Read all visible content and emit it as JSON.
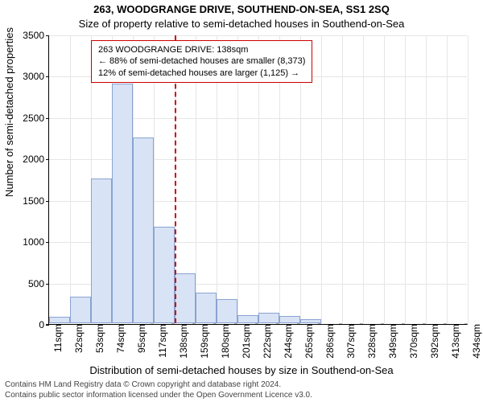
{
  "chart": {
    "type": "histogram",
    "title_line1": "263, WOODGRANGE DRIVE, SOUTHEND-ON-SEA, SS1 2SQ",
    "title_line2": "Size of property relative to semi-detached houses in Southend-on-Sea",
    "ylabel": "Number of semi-detached properties",
    "xlabel": "Distribution of semi-detached houses by size in Southend-on-Sea",
    "title_fontsize": 13,
    "subtitle_fontsize": 13,
    "axis_label_fontsize": 13,
    "tick_fontsize": 12,
    "footer_fontsize": 10,
    "background_color": "#ffffff",
    "grid_color": "#e6e6e6",
    "axis_color": "#000000",
    "bar_fill": "#d8e3f5",
    "bar_border": "#8aa3d1",
    "marker_color": "#cc0000",
    "ylim": [
      0,
      3500
    ],
    "ytick_step": 500,
    "x_tick_labels": [
      "11sqm",
      "32sqm",
      "53sqm",
      "74sqm",
      "95sqm",
      "117sqm",
      "138sqm",
      "159sqm",
      "180sqm",
      "201sqm",
      "222sqm",
      "244sqm",
      "265sqm",
      "286sqm",
      "307sqm",
      "328sqm",
      "349sqm",
      "370sqm",
      "392sqm",
      "413sqm",
      "434sqm"
    ],
    "bar_values": [
      75,
      320,
      1750,
      2900,
      2250,
      1170,
      600,
      370,
      290,
      100,
      125,
      90,
      50,
      0,
      0,
      0,
      0,
      0,
      0,
      0
    ],
    "marker": {
      "x_index": 6,
      "box_lines": [
        "263 WOODGRANGE DRIVE: 138sqm",
        "← 88% of semi-detached houses are smaller (8,373)",
        "12% of semi-detached houses are larger (1,125) →"
      ],
      "box_border": "#cc0000",
      "box_fontsize": 11
    }
  },
  "footer": {
    "line1": "Contains HM Land Registry data © Crown copyright and database right 2024.",
    "line2": "Contains public sector information licensed under the Open Government Licence v3.0."
  }
}
